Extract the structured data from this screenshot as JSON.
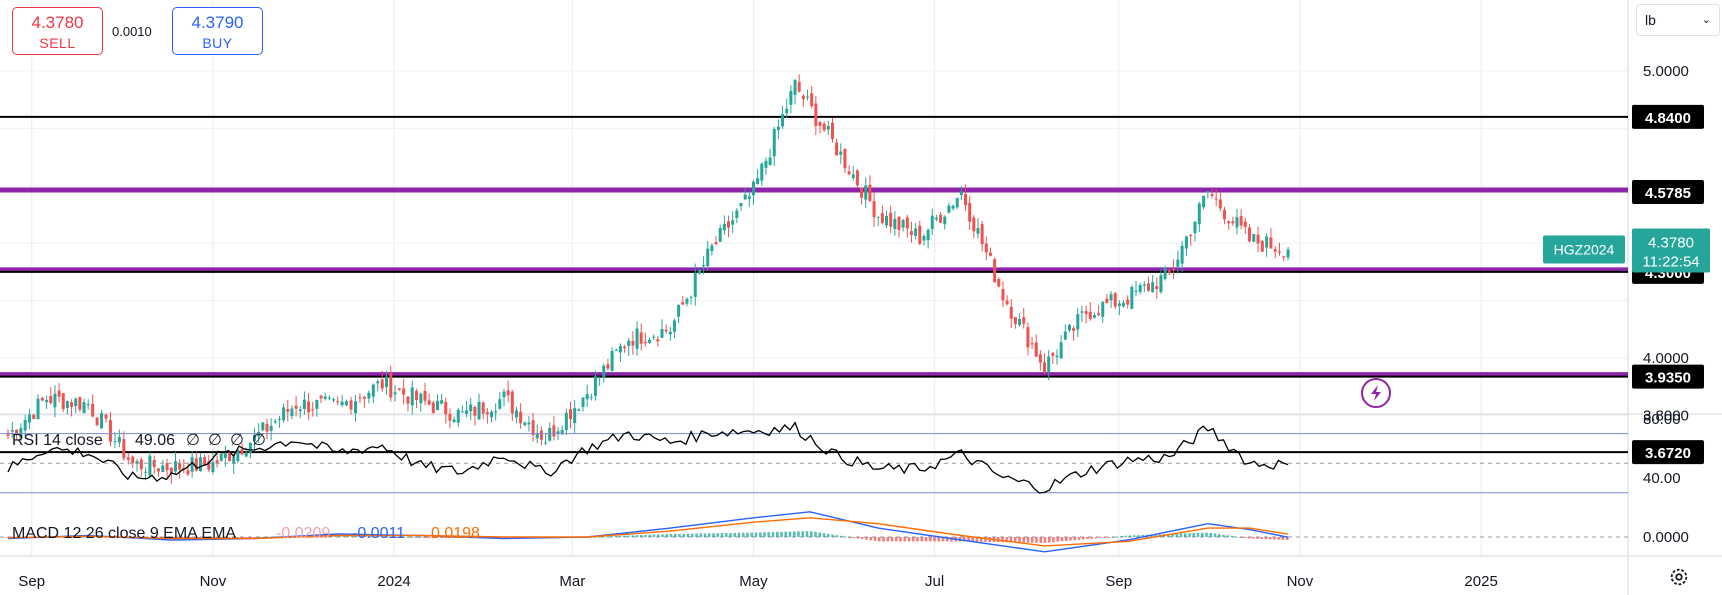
{
  "header": {
    "sell_price": "4.3780",
    "sell_label": "SELL",
    "spread": "0.0010",
    "buy_price": "4.3790",
    "buy_label": "BUY",
    "unit": "lb"
  },
  "colors": {
    "up": "#26a69a",
    "down": "#ef5350",
    "support": "#000000",
    "purple": "#8e24aa",
    "sell": "#f23645",
    "buy": "#2962ff",
    "macd_line": "#2962ff",
    "signal_line": "#ff6d00"
  },
  "chart_data": [
    {
      "type": "candlestick",
      "symbol": "HGZ2024",
      "last_price": "4.3780",
      "countdown": "11:22:54",
      "y_ticks": [
        "5.0000",
        "4.0000",
        "3.8000"
      ],
      "x_ticks": [
        "Sep",
        "Nov",
        "2024",
        "Mar",
        "May",
        "Jul",
        "Sep",
        "Nov",
        "2025"
      ],
      "horizontal_lines": [
        {
          "price": 4.84,
          "label": "4.8400",
          "color": "black"
        },
        {
          "price": 4.5785,
          "label": "4.5785",
          "color": "purple"
        },
        {
          "price": 4.3,
          "label": "4.3000",
          "color": "purple+black"
        },
        {
          "price": 3.935,
          "label": "3.9350",
          "color": "purple+black"
        },
        {
          "price": 3.672,
          "label": "3.6720",
          "color": "black"
        }
      ],
      "close_path": [
        [
          "2023-08-24",
          3.73
        ],
        [
          "2023-09-06",
          3.86
        ],
        [
          "2023-09-20",
          3.84
        ],
        [
          "2023-10-05",
          3.63
        ],
        [
          "2023-10-18",
          3.62
        ],
        [
          "2023-11-01",
          3.63
        ],
        [
          "2023-11-15",
          3.72
        ],
        [
          "2023-11-29",
          3.84
        ],
        [
          "2023-12-13",
          3.83
        ],
        [
          "2023-12-28",
          3.91
        ],
        [
          "2024-01-10",
          3.85
        ],
        [
          "2024-01-24",
          3.8
        ],
        [
          "2024-02-07",
          3.86
        ],
        [
          "2024-02-21",
          3.72
        ],
        [
          "2024-03-06",
          3.88
        ],
        [
          "2024-03-20",
          4.07
        ],
        [
          "2024-04-03",
          4.1
        ],
        [
          "2024-04-17",
          4.38
        ],
        [
          "2024-05-01",
          4.58
        ],
        [
          "2024-05-15",
          4.95
        ],
        [
          "2024-05-29",
          4.73
        ],
        [
          "2024-06-12",
          4.5
        ],
        [
          "2024-06-26",
          4.42
        ],
        [
          "2024-07-10",
          4.58
        ],
        [
          "2024-07-24",
          4.22
        ],
        [
          "2024-08-07",
          3.97
        ],
        [
          "2024-08-21",
          4.16
        ],
        [
          "2024-09-04",
          4.21
        ],
        [
          "2024-09-18",
          4.29
        ],
        [
          "2024-10-01",
          4.58
        ],
        [
          "2024-10-15",
          4.41
        ],
        [
          "2024-10-28",
          4.378
        ]
      ]
    },
    {
      "type": "line",
      "title": "RSI 14 close",
      "value": "49.06",
      "extra_values": [
        "∅",
        "∅",
        "∅",
        "∅"
      ],
      "y_ticks": [
        "80.00",
        "40.00"
      ],
      "bands": [
        70,
        30
      ],
      "mid": 50,
      "points": [
        [
          "2023-08-24",
          46
        ],
        [
          "2023-09-06",
          60
        ],
        [
          "2023-09-20",
          57
        ],
        [
          "2023-10-05",
          40
        ],
        [
          "2023-10-18",
          42
        ],
        [
          "2023-11-01",
          54
        ],
        [
          "2023-11-15",
          60
        ],
        [
          "2023-11-29",
          66
        ],
        [
          "2023-12-13",
          57
        ],
        [
          "2023-12-28",
          62
        ],
        [
          "2024-01-10",
          48
        ],
        [
          "2024-01-24",
          44
        ],
        [
          "2024-02-07",
          56
        ],
        [
          "2024-02-21",
          43
        ],
        [
          "2024-03-06",
          60
        ],
        [
          "2024-03-20",
          70
        ],
        [
          "2024-04-03",
          64
        ],
        [
          "2024-04-17",
          71
        ],
        [
          "2024-05-01",
          72
        ],
        [
          "2024-05-15",
          74
        ],
        [
          "2024-05-29",
          55
        ],
        [
          "2024-06-12",
          46
        ],
        [
          "2024-06-26",
          46
        ],
        [
          "2024-07-10",
          56
        ],
        [
          "2024-07-24",
          40
        ],
        [
          "2024-08-07",
          33
        ],
        [
          "2024-08-21",
          45
        ],
        [
          "2024-09-04",
          52
        ],
        [
          "2024-09-18",
          54
        ],
        [
          "2024-10-01",
          74
        ],
        [
          "2024-10-15",
          50
        ],
        [
          "2024-10-28",
          49.06
        ]
      ]
    },
    {
      "type": "line",
      "title": "MACD 12 26 close 9 EMA EMA",
      "values": [
        "-0.0209",
        "-0.0011",
        "0.0198"
      ],
      "y_ticks": [
        "0.0000"
      ],
      "series": [
        {
          "name": "MACD",
          "color": "#2962ff",
          "points": [
            [
              "2023-08-24",
              -0.01
            ],
            [
              "2023-09-20",
              0.01
            ],
            [
              "2023-10-18",
              -0.02
            ],
            [
              "2023-11-15",
              -0.01
            ],
            [
              "2023-12-13",
              0.02
            ],
            [
              "2024-01-10",
              0.01
            ],
            [
              "2024-02-07",
              -0.01
            ],
            [
              "2024-03-06",
              0.0
            ],
            [
              "2024-04-03",
              0.06
            ],
            [
              "2024-05-01",
              0.13
            ],
            [
              "2024-05-20",
              0.17
            ],
            [
              "2024-06-12",
              0.06
            ],
            [
              "2024-07-10",
              -0.02
            ],
            [
              "2024-08-07",
              -0.1
            ],
            [
              "2024-09-04",
              -0.02
            ],
            [
              "2024-10-01",
              0.09
            ],
            [
              "2024-10-15",
              0.05
            ],
            [
              "2024-10-28",
              -0.0011
            ]
          ]
        },
        {
          "name": "Signal",
          "color": "#ff6d00",
          "points": [
            [
              "2023-08-24",
              -0.005
            ],
            [
              "2023-09-20",
              0.005
            ],
            [
              "2023-10-18",
              -0.01
            ],
            [
              "2023-11-15",
              -0.01
            ],
            [
              "2023-12-13",
              0.01
            ],
            [
              "2024-01-10",
              0.01
            ],
            [
              "2024-02-07",
              0.0
            ],
            [
              "2024-03-06",
              0.0
            ],
            [
              "2024-04-03",
              0.04
            ],
            [
              "2024-05-01",
              0.1
            ],
            [
              "2024-05-20",
              0.13
            ],
            [
              "2024-06-12",
              0.09
            ],
            [
              "2024-07-10",
              0.01
            ],
            [
              "2024-08-07",
              -0.06
            ],
            [
              "2024-09-04",
              -0.03
            ],
            [
              "2024-10-01",
              0.06
            ],
            [
              "2024-10-15",
              0.06
            ],
            [
              "2024-10-28",
              0.0198
            ]
          ]
        }
      ]
    }
  ]
}
